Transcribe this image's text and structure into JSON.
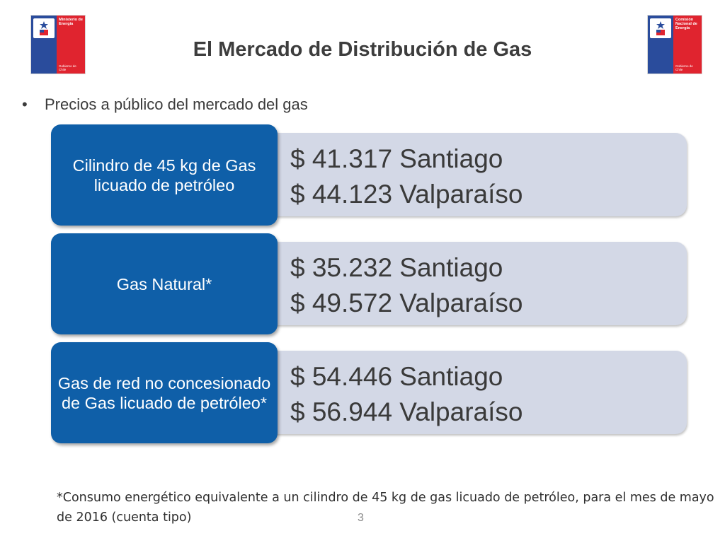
{
  "header": {
    "title": "El Mercado de Distribución de Gas",
    "logo_left": {
      "org": "Ministerio de Energía",
      "gov": "Gobierno de Chile",
      "colors": {
        "blue": "#2a4c9c",
        "red": "#e0242f"
      }
    },
    "logo_right": {
      "org": "Comisión Nacional de Energía",
      "gov": "Gobierno de Chile",
      "colors": {
        "blue": "#2a4c9c",
        "red": "#e0242f"
      }
    }
  },
  "subtitle": {
    "bullet": "•",
    "text": "Precios a público del mercado del gas"
  },
  "rows": [
    {
      "label": "Cilindro de 45 kg de Gas licuado de petróleo",
      "prices": [
        "$ 41.317 Santiago",
        "$ 44.123 Valparaíso"
      ]
    },
    {
      "label": "Gas Natural*",
      "prices": [
        "$ 35.232 Santiago",
        "$ 49.572 Valparaíso"
      ]
    },
    {
      "label": "Gas de red no concesionado de Gas licuado de petróleo*",
      "prices": [
        "$ 54.446 Santiago",
        "$ 56.944 Valparaíso"
      ]
    }
  ],
  "price_bullet": "•",
  "colors": {
    "label_bg": "#0f5fa8",
    "panel_bg": "#d3d8e6",
    "title_text": "#3d3d3d"
  },
  "footnote": "*Consumo energético equivalente a un cilindro de 45 kg de gas licuado de petróleo, para el mes de mayo de 2016 (cuenta tipo)",
  "page_number": "3"
}
